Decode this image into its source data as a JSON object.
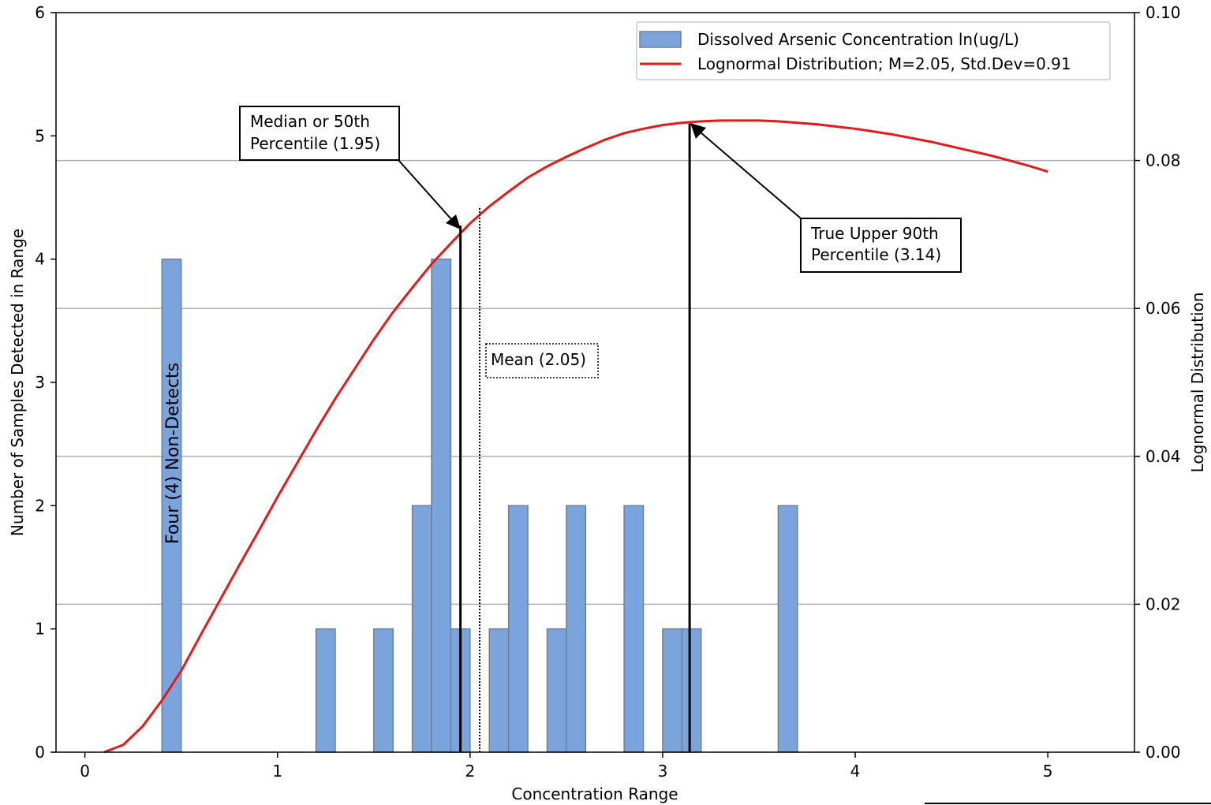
{
  "chart_data": {
    "type": "bar",
    "xlabel": "Concentration Range",
    "ylabel": "Number of Samples Detected in Range",
    "y2label": "Lognormal Distribution",
    "xlim": [
      -0.15,
      5.45
    ],
    "ylim": [
      0,
      6
    ],
    "y2lim": [
      0,
      0.1
    ],
    "x_ticks": [
      0,
      1,
      2,
      3,
      4,
      5
    ],
    "y_ticks": [
      0,
      1,
      2,
      3,
      4,
      5,
      6
    ],
    "y2_ticks": [
      "0.00",
      "0.02",
      "0.04",
      "0.06",
      "0.08",
      "0.10"
    ],
    "grid": "horizontal, right axis",
    "legend_position": "top-right",
    "colors": {
      "bars": "#7ba3dc",
      "bar_edge": "#6f7f95",
      "curve": "#e31a1c",
      "grid": "#b0b0b0"
    },
    "series": [
      {
        "name": "Dissolved Arsenic Concentration ln(ug/L)",
        "kind": "bar",
        "bin_width": 0.1,
        "x": [
          0.4,
          1.2,
          1.5,
          1.7,
          1.8,
          1.9,
          2.1,
          2.2,
          2.4,
          2.5,
          2.8,
          3.0,
          3.1,
          3.6
        ],
        "values": [
          4,
          1,
          1,
          2,
          4,
          1,
          1,
          2,
          1,
          2,
          2,
          1,
          1,
          2
        ]
      },
      {
        "name": "Lognormal Distribution; M=2.05, Std.Dev=0.91",
        "kind": "line",
        "axis": "right",
        "x": [
          0.1,
          0.2,
          0.3,
          0.4,
          0.5,
          0.6,
          0.7,
          0.8,
          0.9,
          1.0,
          1.1,
          1.2,
          1.3,
          1.4,
          1.5,
          1.6,
          1.7,
          1.8,
          1.9,
          2.0,
          2.1,
          2.2,
          2.3,
          2.4,
          2.5,
          2.6,
          2.7,
          2.8,
          2.9,
          3.0,
          3.1,
          3.2,
          3.3,
          3.4,
          3.5,
          3.6,
          3.7,
          3.8,
          3.9,
          4.0,
          4.1,
          4.2,
          4.3,
          4.4,
          4.5,
          4.6,
          4.7,
          4.8,
          4.9,
          5.0
        ],
        "values": [
          0.0,
          0.001,
          0.0035,
          0.007,
          0.011,
          0.0158,
          0.0205,
          0.0252,
          0.0298,
          0.0345,
          0.039,
          0.0435,
          0.0478,
          0.0518,
          0.0558,
          0.0595,
          0.0628,
          0.066,
          0.0688,
          0.0715,
          0.0738,
          0.0758,
          0.0777,
          0.0792,
          0.0805,
          0.0817,
          0.0828,
          0.0837,
          0.0843,
          0.0848,
          0.0851,
          0.0853,
          0.0854,
          0.0854,
          0.0854,
          0.0853,
          0.0851,
          0.0849,
          0.0846,
          0.0843,
          0.0839,
          0.0835,
          0.083,
          0.0825,
          0.0819,
          0.0813,
          0.0807,
          0.08,
          0.0793,
          0.0785
        ]
      }
    ],
    "markers": [
      {
        "name": "median",
        "x": 1.95,
        "y_top": 0.0712,
        "style": "solid"
      },
      {
        "name": "upper90",
        "x": 3.14,
        "y_top": 0.085,
        "style": "solid"
      },
      {
        "name": "mean",
        "x": 2.05,
        "y_top": 0.0738,
        "style": "dotted"
      }
    ],
    "annotations": {
      "median": [
        "Median or 50th",
        "Percentile (1.95)"
      ],
      "upper90": [
        "True Upper 90th",
        "Percentile (3.14)"
      ],
      "mean": "Mean (2.05)",
      "nondetects": "Four (4) Non-Detects"
    }
  }
}
